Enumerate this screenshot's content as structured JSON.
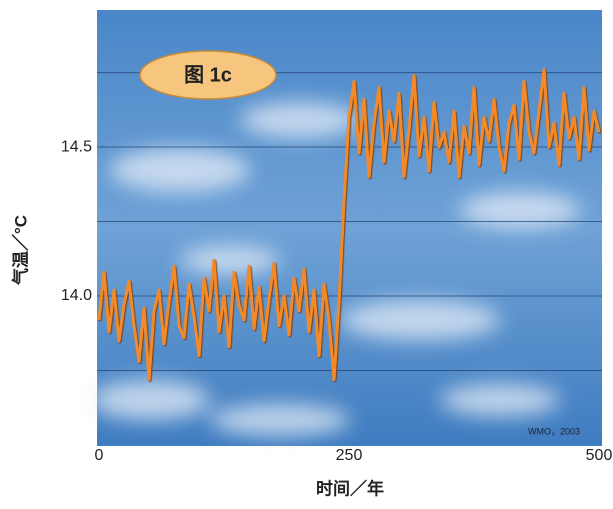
{
  "chart_data": {
    "type": "line",
    "annotation": "图 1c",
    "source": "WMO，2003",
    "x_label": "时间／年",
    "y_label": "气温／°C",
    "xlim": [
      0,
      500
    ],
    "xticks": [
      0,
      250,
      500
    ],
    "ylim": [
      13.5,
      14.96
    ],
    "yticks": [
      {
        "value": 14,
        "label": "14.0"
      },
      {
        "value": 14.5,
        "label": "14.5"
      }
    ],
    "ygrid": [
      13.75,
      14,
      14.25,
      14.5,
      14.75
    ],
    "grid": true,
    "series": [
      {
        "color": "#f28a2a",
        "x": [
          0,
          5,
          10,
          15,
          20,
          25,
          30,
          35,
          40,
          45,
          50,
          55,
          60,
          65,
          70,
          75,
          80,
          85,
          90,
          95,
          100,
          105,
          110,
          115,
          120,
          125,
          130,
          135,
          140,
          145,
          150,
          155,
          160,
          165,
          170,
          175,
          180,
          185,
          190,
          195,
          200,
          205,
          210,
          215,
          220,
          225,
          230,
          235,
          240,
          245,
          250,
          255,
          260,
          265,
          270,
          275,
          280,
          285,
          290,
          295,
          300,
          305,
          310,
          315,
          320,
          325,
          330,
          335,
          340,
          345,
          350,
          355,
          360,
          365,
          370,
          375,
          380,
          385,
          390,
          395,
          400,
          405,
          410,
          415,
          420,
          425,
          430,
          435,
          440,
          445,
          450,
          455,
          460,
          465,
          470,
          475,
          480,
          485,
          490,
          495,
          500
        ],
        "values": [
          13.92,
          14.08,
          13.88,
          14.02,
          13.85,
          13.97,
          14.05,
          13.9,
          13.78,
          13.96,
          13.72,
          13.95,
          14.02,
          13.84,
          13.98,
          14.1,
          13.9,
          13.86,
          14.04,
          13.93,
          13.8,
          14.06,
          13.95,
          14.12,
          13.88,
          14.0,
          13.83,
          14.08,
          13.97,
          13.92,
          14.1,
          13.89,
          14.03,
          13.85,
          13.99,
          14.11,
          13.9,
          14.0,
          13.87,
          14.06,
          13.95,
          14.09,
          13.88,
          14.02,
          13.8,
          14.04,
          13.92,
          13.72,
          13.98,
          14.32,
          14.6,
          14.72,
          14.48,
          14.66,
          14.4,
          14.58,
          14.7,
          14.45,
          14.62,
          14.52,
          14.68,
          14.4,
          14.56,
          14.74,
          14.47,
          14.6,
          14.42,
          14.65,
          14.5,
          14.55,
          14.45,
          14.62,
          14.4,
          14.57,
          14.48,
          14.7,
          14.44,
          14.6,
          14.52,
          14.66,
          14.5,
          14.42,
          14.58,
          14.64,
          14.46,
          14.72,
          14.55,
          14.48,
          14.62,
          14.76,
          14.5,
          14.58,
          14.44,
          14.68,
          14.53,
          14.6,
          14.46,
          14.7,
          14.49,
          14.62,
          14.55
        ]
      }
    ]
  }
}
